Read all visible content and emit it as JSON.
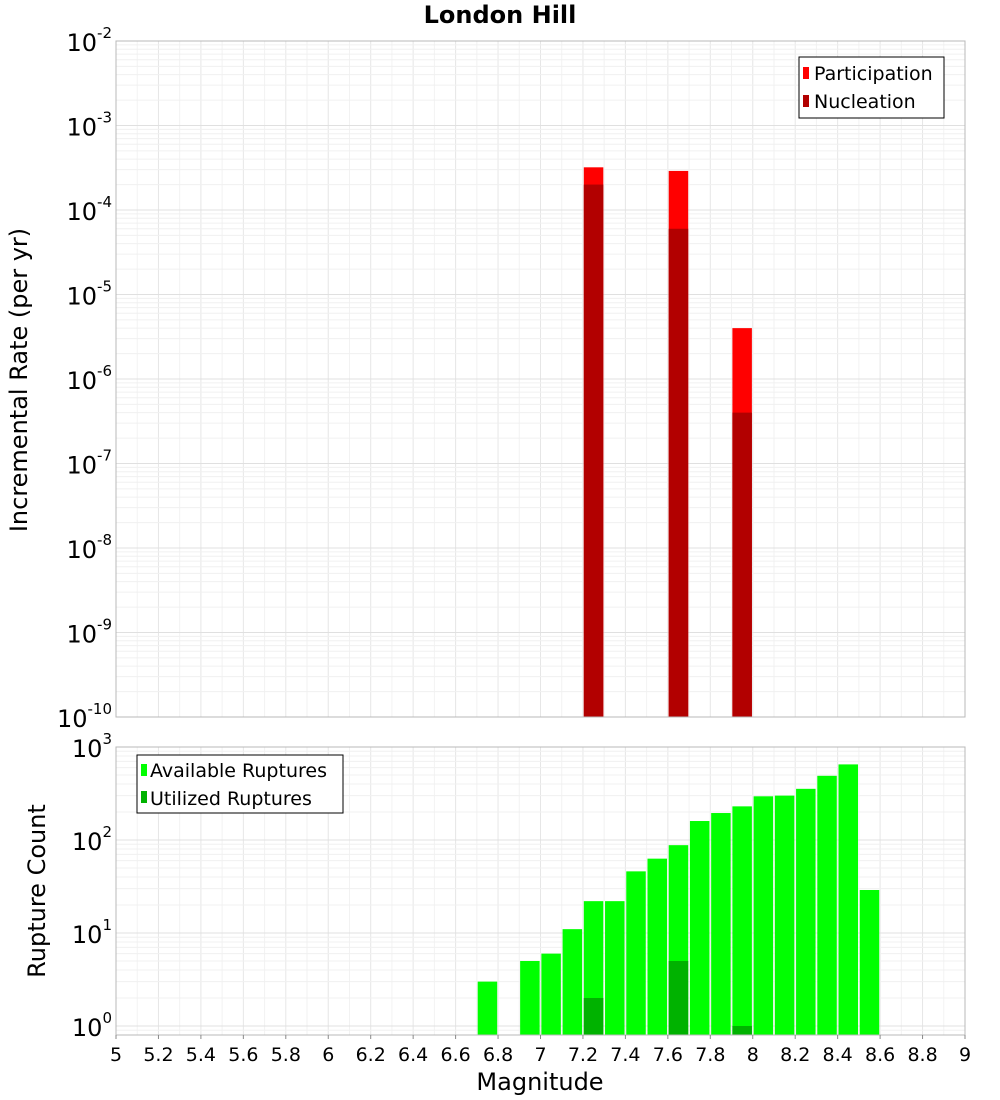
{
  "chart_data": [
    {
      "type": "bar",
      "panel": "top",
      "title": "London Hill",
      "xlabel": "Magnitude",
      "ylabel": "Incremental Rate (per yr)",
      "yscale": "log",
      "ylim": [
        1e-10,
        0.01
      ],
      "xlim": [
        5,
        9
      ],
      "ytick_exponents": [
        "-10",
        "-9",
        "-8",
        "-7",
        "-6",
        "-5",
        "-4",
        "-3",
        "-2"
      ],
      "grid": true,
      "legend_position": "top-right",
      "series": [
        {
          "name": "Participation",
          "color": "#ff0000",
          "points": [
            {
              "x": 7.25,
              "y": 0.00032
            },
            {
              "x": 7.65,
              "y": 0.00029
            },
            {
              "x": 7.95,
              "y": 4e-06
            }
          ]
        },
        {
          "name": "Nucleation",
          "color": "#b20000",
          "points": [
            {
              "x": 7.25,
              "y": 0.0002
            },
            {
              "x": 7.65,
              "y": 6e-05
            },
            {
              "x": 7.95,
              "y": 4e-07
            }
          ]
        }
      ]
    },
    {
      "type": "bar",
      "panel": "bottom",
      "xlabel": "Magnitude",
      "ylabel": "Rupture Count",
      "yscale": "log",
      "ylim": [
        0.8,
        1000
      ],
      "xlim": [
        5,
        9
      ],
      "xticks": [
        "5",
        "5.2",
        "5.4",
        "5.6",
        "5.8",
        "6",
        "6.2",
        "6.4",
        "6.6",
        "6.8",
        "7",
        "7.2",
        "7.4",
        "7.6",
        "7.8",
        "8",
        "8.2",
        "8.4",
        "8.6",
        "8.8",
        "9"
      ],
      "ytick_exponents": [
        "0",
        "1",
        "2",
        "3"
      ],
      "grid": true,
      "legend_position": "top-left",
      "series": [
        {
          "name": "Available Ruptures",
          "color": "#00ff00",
          "points": [
            {
              "x": 6.75,
              "y": 3
            },
            {
              "x": 6.95,
              "y": 5
            },
            {
              "x": 7.05,
              "y": 6
            },
            {
              "x": 7.15,
              "y": 11
            },
            {
              "x": 7.25,
              "y": 22
            },
            {
              "x": 7.35,
              "y": 22
            },
            {
              "x": 7.45,
              "y": 46
            },
            {
              "x": 7.55,
              "y": 63
            },
            {
              "x": 7.65,
              "y": 88
            },
            {
              "x": 7.75,
              "y": 160
            },
            {
              "x": 7.85,
              "y": 195
            },
            {
              "x": 7.95,
              "y": 230
            },
            {
              "x": 8.05,
              "y": 295
            },
            {
              "x": 8.15,
              "y": 300
            },
            {
              "x": 8.25,
              "y": 355
            },
            {
              "x": 8.35,
              "y": 490
            },
            {
              "x": 8.45,
              "y": 650
            },
            {
              "x": 8.55,
              "y": 29
            }
          ]
        },
        {
          "name": "Utilized Ruptures",
          "color": "#00b200",
          "points": [
            {
              "x": 7.25,
              "y": 2
            },
            {
              "x": 7.65,
              "y": 5
            },
            {
              "x": 7.95,
              "y": 1
            }
          ]
        }
      ]
    }
  ]
}
